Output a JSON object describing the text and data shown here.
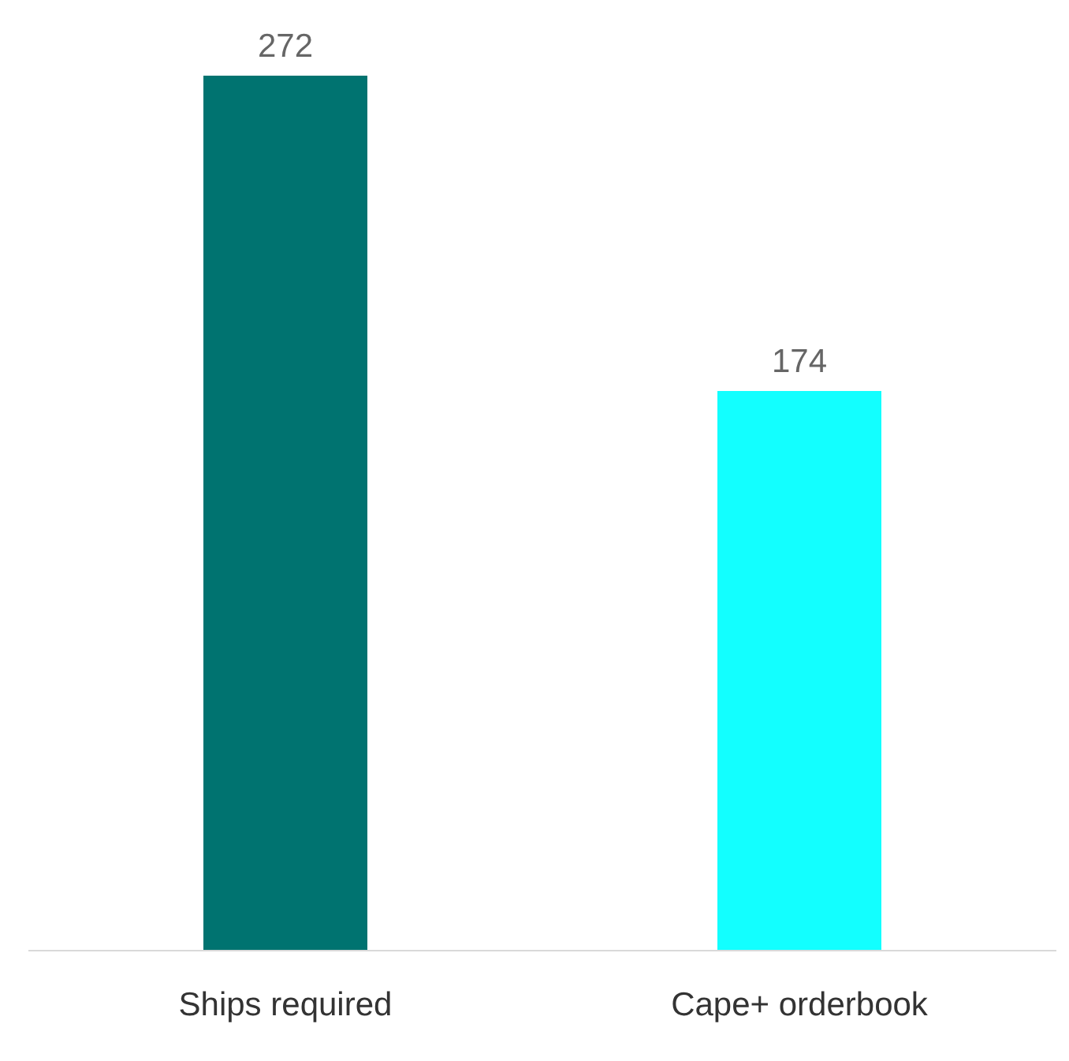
{
  "chart_data": {
    "type": "bar",
    "categories": [
      "Ships required",
      "Cape+ orderbook"
    ],
    "values": [
      272,
      174
    ],
    "colors": [
      "#007370",
      "#12ffff"
    ],
    "data_labels": true
  }
}
